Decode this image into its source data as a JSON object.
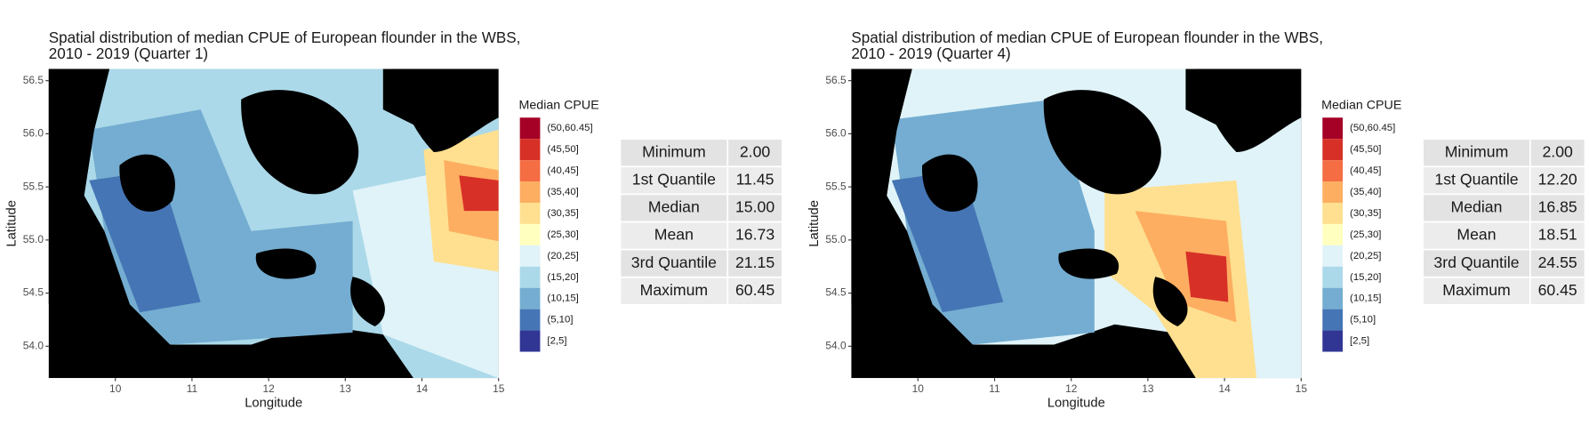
{
  "chart_data": [
    {
      "type": "map",
      "title": [
        "Spatial distribution of median CPUE of European flounder in the WBS,",
        "2010 - 2019 (Quarter 1)"
      ],
      "xlabel": "Longitude",
      "ylabel": "Latitude",
      "xlim": [
        9.13,
        15
      ],
      "ylim": [
        53.7,
        56.61
      ],
      "xticks": [
        10,
        11,
        12,
        13,
        14,
        15
      ],
      "yticks": [
        {
          "value": 54,
          "label": "54.0"
        },
        54.5,
        {
          "value": 55,
          "label": "55.0"
        },
        55.5,
        {
          "value": 56,
          "label": "56.0"
        },
        56.5
      ],
      "legend": {
        "title": "Median CPUE",
        "labels": [
          "(50,60.45]",
          "(45,50]",
          "(40,45]",
          "(35,40]",
          "(30,35]",
          "(25,30]",
          "(20,25]",
          "(15,20]",
          "(10,15]",
          "(5,10]",
          "[2,5]"
        ],
        "colors": [
          "#a50026",
          "#d73027",
          "#f46d43",
          "#fdae61",
          "#fee090",
          "#ffffbf",
          "#e0f3f8",
          "#abd9e9",
          "#74add1",
          "#4575b4",
          "#313695"
        ]
      },
      "table": {
        "rows": [
          [
            "Minimum",
            "2.00"
          ],
          [
            "1st Quantile",
            "11.45"
          ],
          [
            "Median",
            "15.00"
          ],
          [
            "Mean",
            "16.73"
          ],
          [
            "3rd Quantile",
            "21.15"
          ],
          [
            "Maximum",
            "60.45"
          ]
        ]
      }
    },
    {
      "type": "map",
      "title": [
        "Spatial distribution of median CPUE of European flounder in the WBS,",
        "2010 - 2019 (Quarter 4)"
      ],
      "xlabel": "Longitude",
      "ylabel": "Latitude",
      "xlim": [
        9.13,
        15
      ],
      "ylim": [
        53.7,
        56.61
      ],
      "xticks": [
        10,
        11,
        12,
        13,
        14,
        15
      ],
      "yticks": [
        {
          "value": 54,
          "label": "54.0"
        },
        54.5,
        {
          "value": 55,
          "label": "55.0"
        },
        55.5,
        {
          "value": 56,
          "label": "56.0"
        },
        56.5
      ],
      "legend": {
        "title": "Median CPUE",
        "labels": [
          "(50,60.45]",
          "(45,50]",
          "(40,45]",
          "(35,40]",
          "(30,35]",
          "(25,30]",
          "(20,25]",
          "(15,20]",
          "(10,15]",
          "(5,10]",
          "[2,5]"
        ],
        "colors": [
          "#a50026",
          "#d73027",
          "#f46d43",
          "#fdae61",
          "#fee090",
          "#ffffbf",
          "#e0f3f8",
          "#abd9e9",
          "#74add1",
          "#4575b4",
          "#313695"
        ]
      },
      "table": {
        "rows": [
          [
            "Minimum",
            "2.00"
          ],
          [
            "1st Quantile",
            "12.20"
          ],
          [
            "Median",
            "16.85"
          ],
          [
            "Mean",
            "18.51"
          ],
          [
            "3rd Quantile",
            "24.55"
          ],
          [
            "Maximum",
            "60.45"
          ]
        ]
      }
    }
  ]
}
